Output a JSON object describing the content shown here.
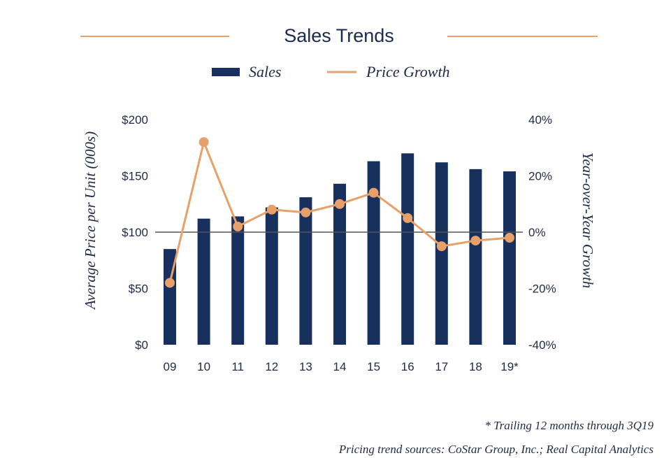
{
  "colors": {
    "title": "#1b2a52",
    "bar": "#17305e",
    "line": "#e8a06a",
    "rule": "#e8a06a",
    "zero_line": "#555555"
  },
  "footnotes": {
    "trailing": "* Trailing 12 months through 3Q19",
    "sources": "Pricing trend sources: CoStar Group, Inc.; Real Capital Analytics"
  },
  "chart_data": {
    "type": "bar",
    "title": "Sales Trends",
    "categories": [
      "09",
      "10",
      "11",
      "12",
      "13",
      "14",
      "15",
      "16",
      "17",
      "18",
      "19*"
    ],
    "series": [
      {
        "name": "Sales",
        "type": "bar",
        "axis": "left",
        "values": [
          85,
          112,
          114,
          122,
          131,
          143,
          163,
          170,
          162,
          156,
          154
        ]
      },
      {
        "name": "Price Growth",
        "type": "line",
        "axis": "right",
        "values": [
          -18,
          32,
          2,
          8,
          7,
          10,
          14,
          5,
          -5,
          -3,
          -2
        ]
      }
    ],
    "ylabel": "Average Price per Unit (000s)",
    "y2label": "Year-over-Year Growth",
    "ylim": [
      0,
      200
    ],
    "y2lim": [
      -40,
      40
    ],
    "yticks": [
      "$0",
      "$50",
      "$100",
      "$150",
      "$200"
    ],
    "y2ticks": [
      "-40%",
      "-20%",
      "0%",
      "20%",
      "40%"
    ],
    "legend_position": "top-center",
    "grid": false
  }
}
